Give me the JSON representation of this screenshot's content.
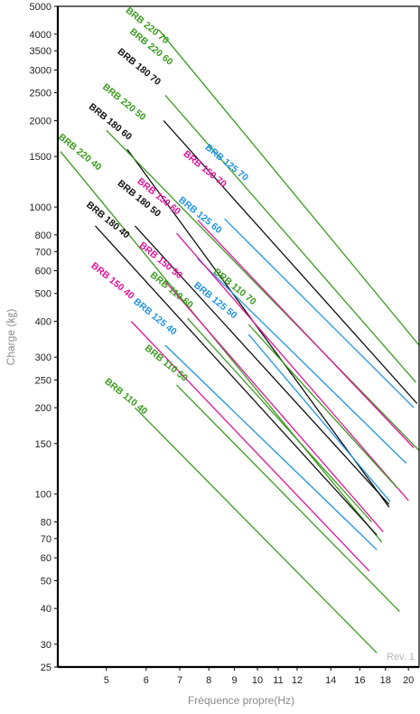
{
  "chart_data": {
    "type": "line",
    "xlabel": "Fréquence propre(Hz)",
    "ylabel": "Charge (㎏)",
    "annotation": "Rev. 1",
    "x_scale": "log",
    "y_scale": "log",
    "xlim": [
      4.0,
      21.0
    ],
    "ylim": [
      25,
      5000
    ],
    "x_ticks": [
      5,
      6,
      7,
      8,
      9,
      10,
      11,
      12,
      14,
      16,
      18,
      20
    ],
    "y_ticks": [
      25,
      30,
      40,
      50,
      60,
      70,
      80,
      100,
      150,
      200,
      250,
      300,
      400,
      500,
      600,
      700,
      800,
      1000,
      1500,
      2000,
      2500,
      3000,
      3500,
      4000,
      5000
    ],
    "grid": false,
    "colors": {
      "green": "#3a9b1e",
      "black": "#111111",
      "magenta": "#e0139a",
      "blue": "#1f93e8"
    },
    "series": [
      {
        "name": "BRB 220 70",
        "color": "green",
        "x": [
          6.35,
          21.0
        ],
        "y": [
          4150,
          330
        ]
      },
      {
        "name": "BRB 220 60",
        "color": "green",
        "x": [
          6.55,
          20.7
        ],
        "y": [
          2450,
          245
        ]
      },
      {
        "name": "BRB 180 70",
        "color": "black",
        "x": [
          6.5,
          20.8
        ],
        "y": [
          2000,
          207
        ]
      },
      {
        "name": "BRB 180 60",
        "color": "black",
        "x": [
          5.5,
          18.3
        ],
        "y": [
          1590,
          90
        ]
      },
      {
        "name": "BRB 220 50",
        "color": "green",
        "x": [
          5.0,
          21.0
        ],
        "y": [
          1850,
          142
        ]
      },
      {
        "name": "BRB 220 40",
        "color": "green",
        "x": [
          4.05,
          17.7
        ],
        "y": [
          1560,
          68
        ]
      },
      {
        "name": "BRB 150 70",
        "color": "magenta",
        "x": [
          7.6,
          20.5
        ],
        "y": [
          900,
          145
        ]
      },
      {
        "name": "BRB 125 70",
        "color": "blue",
        "x": [
          8.6,
          20.5
        ],
        "y": [
          910,
          200
        ]
      },
      {
        "name": "BRB 125 60",
        "color": "blue",
        "x": [
          7.6,
          19.8
        ],
        "y": [
          660,
          128
        ]
      },
      {
        "name": "BRB 180 50",
        "color": "black",
        "x": [
          5.7,
          18.3
        ],
        "y": [
          860,
          92
        ]
      },
      {
        "name": "BRB 150 60",
        "color": "magenta",
        "x": [
          6.9,
          20.0
        ],
        "y": [
          810,
          95
        ]
      },
      {
        "name": "BRB 180 40",
        "color": "black",
        "x": [
          4.75,
          17.3
        ],
        "y": [
          860,
          72
        ]
      },
      {
        "name": "BRB 150 50",
        "color": "magenta",
        "x": [
          6.55,
          17.8
        ],
        "y": [
          550,
          74
        ]
      },
      {
        "name": "BRB 110 70",
        "color": "green",
        "x": [
          9.6,
          19.0
        ],
        "y": [
          390,
          105
        ]
      },
      {
        "name": "BRB 125 50",
        "color": "blue",
        "x": [
          9.6,
          18.4
        ],
        "y": [
          360,
          94
        ]
      },
      {
        "name": "BRB 110 60",
        "color": "green",
        "x": [
          7.25,
          16.9
        ],
        "y": [
          410,
          80
        ]
      },
      {
        "name": "BRB 125 40",
        "color": "blue",
        "x": [
          6.55,
          17.3
        ],
        "y": [
          330,
          64
        ]
      },
      {
        "name": "BRB 150 40",
        "color": "magenta",
        "x": [
          5.6,
          16.7
        ],
        "y": [
          400,
          54
        ]
      },
      {
        "name": "BRB 110 50",
        "color": "green",
        "x": [
          6.9,
          19.2
        ],
        "y": [
          240,
          39
        ]
      },
      {
        "name": "BRB 110 40",
        "color": "green",
        "x": [
          5.7,
          17.3
        ],
        "y": [
          200,
          28
        ]
      }
    ],
    "labels": [
      {
        "series": "BRB 220 70",
        "x": 5.45,
        "y": 4800,
        "angle": 39
      },
      {
        "series": "BRB 220 60",
        "x": 5.55,
        "y": 4050,
        "angle": 39
      },
      {
        "series": "BRB 180 70",
        "x": 5.25,
        "y": 3450,
        "angle": 39
      },
      {
        "series": "BRB 220 50",
        "x": 4.9,
        "y": 2600,
        "angle": 39
      },
      {
        "series": "BRB 180 60",
        "x": 4.6,
        "y": 2220,
        "angle": 39
      },
      {
        "series": "BRB 220 40",
        "x": 4.0,
        "y": 1740,
        "angle": 39
      },
      {
        "series": "BRB 150 70",
        "x": 7.1,
        "y": 1520,
        "angle": 39
      },
      {
        "series": "BRB 125 70",
        "x": 7.85,
        "y": 1600,
        "angle": 39
      },
      {
        "series": "BRB 125 60",
        "x": 6.95,
        "y": 1050,
        "angle": 39
      },
      {
        "series": "BRB 150 60",
        "x": 5.75,
        "y": 1220,
        "angle": 39
      },
      {
        "series": "BRB 180 50",
        "x": 5.25,
        "y": 1200,
        "angle": 39
      },
      {
        "series": "BRB 180 40",
        "x": 4.55,
        "y": 1010,
        "angle": 39
      },
      {
        "series": "BRB 150 50",
        "x": 5.8,
        "y": 730,
        "angle": 39
      },
      {
        "series": "BRB 110 70",
        "x": 8.15,
        "y": 590,
        "angle": 39
      },
      {
        "series": "BRB 125 50",
        "x": 7.45,
        "y": 530,
        "angle": 39
      },
      {
        "series": "BRB 150 40",
        "x": 4.65,
        "y": 620,
        "angle": 39
      },
      {
        "series": "BRB 110 60",
        "x": 6.1,
        "y": 575,
        "angle": 39
      },
      {
        "series": "BRB 125 40",
        "x": 5.65,
        "y": 465,
        "angle": 39
      },
      {
        "series": "BRB 110 50",
        "x": 5.95,
        "y": 320,
        "angle": 39
      },
      {
        "series": "BRB 110 40",
        "x": 4.95,
        "y": 245,
        "angle": 39
      }
    ]
  }
}
